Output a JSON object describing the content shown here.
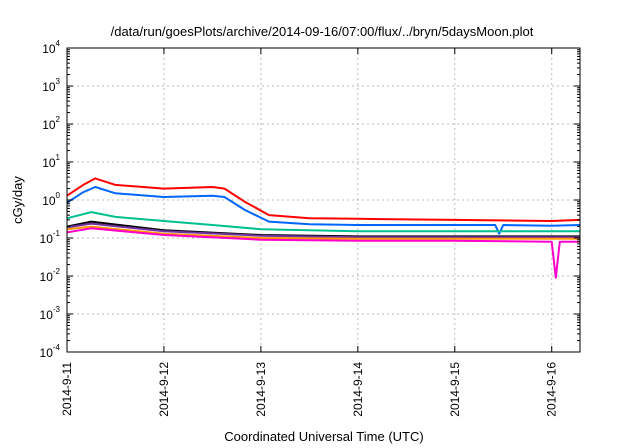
{
  "chart_data": {
    "type": "line",
    "title": "/data/run/goesPlots/archive/2014-09-16/07:00/flux/../bryn/5daysMoon.plot",
    "xlabel": "Coordinated Universal Time (UTC)",
    "ylabel": "cGy/day",
    "x_scale": "time",
    "y_scale": "log",
    "xlim": [
      "2014-09-11",
      "2014-09-16T07:00"
    ],
    "ylim": [
      0.0001,
      10000
    ],
    "grid": true,
    "x_ticks": [
      "2014-9-11",
      "2014-9-12",
      "2014-9-13",
      "2014-9-14",
      "2014-9-15",
      "2014-9-16"
    ],
    "y_ticks": [
      {
        "base": "10",
        "exp": "-4"
      },
      {
        "base": "10",
        "exp": "-3"
      },
      {
        "base": "10",
        "exp": "-2"
      },
      {
        "base": "10",
        "exp": "-1"
      },
      {
        "base": "10",
        "exp": "0"
      },
      {
        "base": "10",
        "exp": "1"
      },
      {
        "base": "10",
        "exp": "2"
      },
      {
        "base": "10",
        "exp": "3"
      },
      {
        "base": "10",
        "exp": "4"
      }
    ],
    "series": [
      {
        "color": "#ff0000",
        "x": [
          "2014-09-11T00:00",
          "2014-09-11T04:00",
          "2014-09-11T07:00",
          "2014-09-11T12:00",
          "2014-09-12T00:00",
          "2014-09-12T12:00",
          "2014-09-12T15:00",
          "2014-09-12T20:00",
          "2014-09-13T02:00",
          "2014-09-13T12:00",
          "2014-09-14T00:00",
          "2014-09-15T00:00",
          "2014-09-16T00:00",
          "2014-09-16T07:00"
        ],
        "y": [
          1.3,
          2.5,
          3.7,
          2.5,
          2.0,
          2.2,
          2.0,
          0.9,
          0.4,
          0.33,
          0.32,
          0.3,
          0.28,
          0.3
        ]
      },
      {
        "color": "#0066ff",
        "x": [
          "2014-09-11T00:00",
          "2014-09-11T04:00",
          "2014-09-11T07:00",
          "2014-09-11T12:00",
          "2014-09-12T00:00",
          "2014-09-12T12:00",
          "2014-09-12T15:00",
          "2014-09-12T20:00",
          "2014-09-13T02:00",
          "2014-09-13T12:00",
          "2014-09-14T00:00",
          "2014-09-15T00:00",
          "2014-09-15T10:00",
          "2014-09-15T11:00",
          "2014-09-15T12:00",
          "2014-09-16T00:00",
          "2014-09-16T07:00"
        ],
        "y": [
          0.85,
          1.6,
          2.2,
          1.5,
          1.2,
          1.3,
          1.2,
          0.55,
          0.27,
          0.23,
          0.22,
          0.22,
          0.22,
          0.13,
          0.22,
          0.21,
          0.22
        ]
      },
      {
        "color": "#00c090",
        "x": [
          "2014-09-11T00:00",
          "2014-09-11T06:00",
          "2014-09-11T12:00",
          "2014-09-12T00:00",
          "2014-09-12T12:00",
          "2014-09-13T00:00",
          "2014-09-14T00:00",
          "2014-09-15T00:00",
          "2014-09-16T00:00",
          "2014-09-16T07:00"
        ],
        "y": [
          0.33,
          0.48,
          0.36,
          0.28,
          0.22,
          0.17,
          0.15,
          0.15,
          0.15,
          0.15
        ]
      },
      {
        "color": "#000000",
        "x": [
          "2014-09-11T00:00",
          "2014-09-11T06:00",
          "2014-09-12T00:00",
          "2014-09-13T00:00",
          "2014-09-14T00:00",
          "2014-09-15T00:00",
          "2014-09-16T00:00",
          "2014-09-16T07:00"
        ],
        "y": [
          0.2,
          0.27,
          0.16,
          0.12,
          0.11,
          0.11,
          0.11,
          0.11
        ]
      },
      {
        "color": "#7030a0",
        "x": [
          "2014-09-11T00:00",
          "2014-09-11T06:00",
          "2014-09-12T00:00",
          "2014-09-13T00:00",
          "2014-09-14T00:00",
          "2014-09-15T00:00",
          "2014-09-16T00:00",
          "2014-09-16T07:00"
        ],
        "y": [
          0.19,
          0.24,
          0.15,
          0.115,
          0.105,
          0.105,
          0.105,
          0.105
        ]
      },
      {
        "color": "#ff9900",
        "x": [
          "2014-09-11T00:00",
          "2014-09-11T06:00",
          "2014-09-12T00:00",
          "2014-09-13T00:00",
          "2014-09-14T00:00",
          "2014-09-15T00:00",
          "2014-09-16T00:00",
          "2014-09-16T07:00"
        ],
        "y": [
          0.17,
          0.2,
          0.13,
          0.1,
          0.095,
          0.095,
          0.095,
          0.095
        ]
      },
      {
        "color": "#ff00cc",
        "x": [
          "2014-09-11T00:00",
          "2014-09-11T06:00",
          "2014-09-12T00:00",
          "2014-09-13T00:00",
          "2014-09-14T00:00",
          "2014-09-15T00:00",
          "2014-09-16T00:00",
          "2014-09-16T01:00",
          "2014-09-16T02:00",
          "2014-09-16T07:00"
        ],
        "y": [
          0.14,
          0.18,
          0.12,
          0.09,
          0.085,
          0.085,
          0.08,
          0.009,
          0.08,
          0.08
        ]
      }
    ]
  }
}
